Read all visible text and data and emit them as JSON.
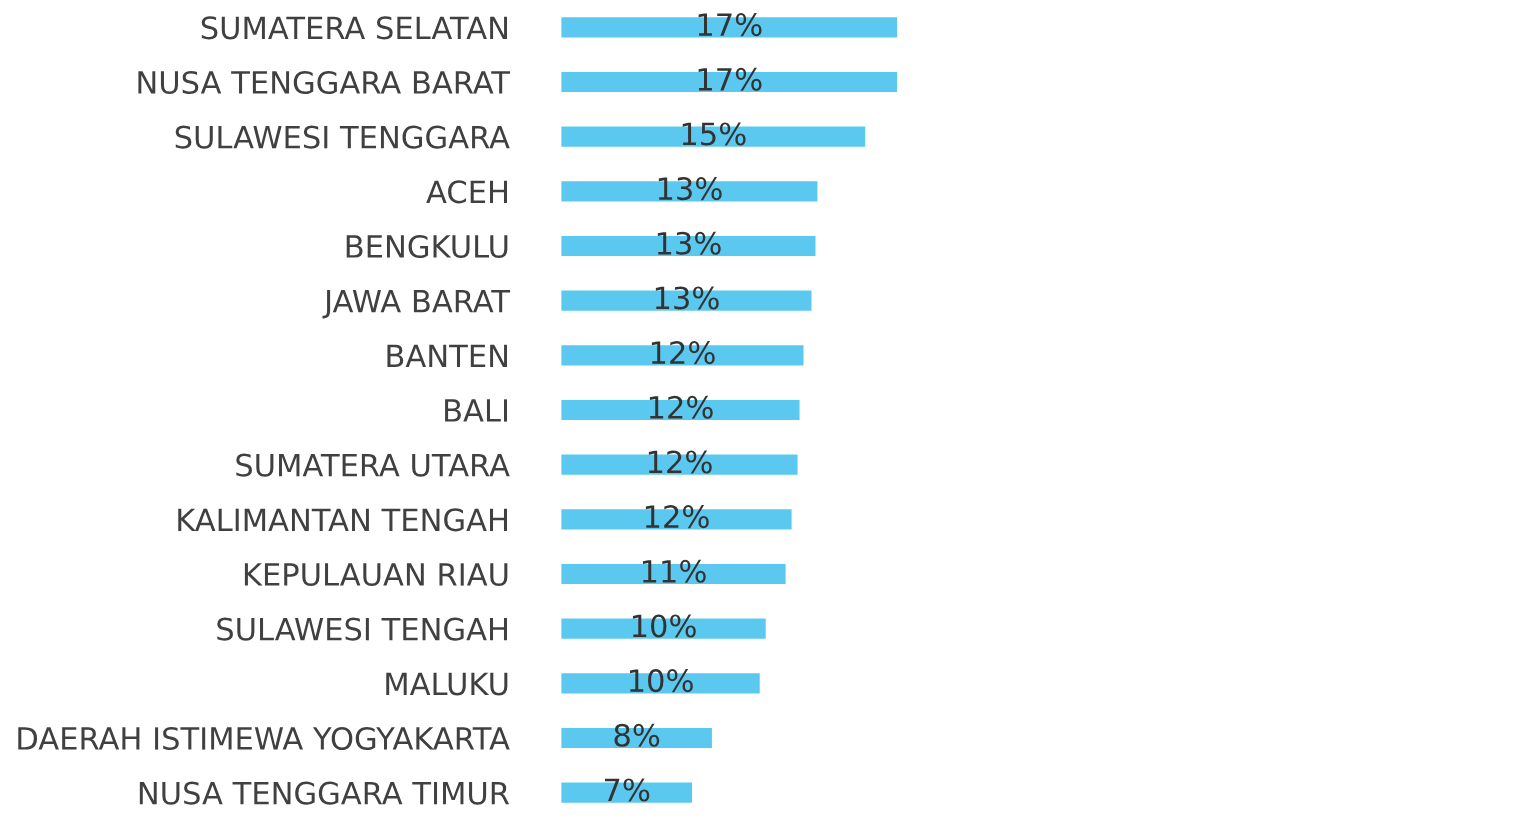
{
  "chart_data": {
    "type": "bar",
    "orientation": "horizontal",
    "categories": [
      "SUMATERA SELATAN",
      "NUSA TENGGARA BARAT",
      "SULAWESI TENGGARA",
      "ACEH",
      "BENGKULU",
      "JAWA BARAT",
      "BANTEN",
      "BALI",
      "SUMATERA UTARA",
      "KALIMANTAN TENGAH",
      "KEPULAUAN RIAU",
      "SULAWESI TENGAH",
      "MALUKU",
      "DAERAH ISTIMEWA YOGYAKARTA",
      "NUSA TENGGARA TIMUR"
    ],
    "values": [
      17.0,
      17.0,
      15.4,
      13.0,
      12.9,
      12.7,
      12.3,
      12.1,
      12.0,
      11.7,
      11.4,
      10.4,
      10.1,
      7.7,
      6.7
    ],
    "value_labels": [
      "17%",
      "17%",
      "15%",
      "13%",
      "13%",
      "13%",
      "12%",
      "12%",
      "12%",
      "12%",
      "11%",
      "10%",
      "10%",
      "8%",
      "7%"
    ],
    "color": "#5bc8ef"
  }
}
